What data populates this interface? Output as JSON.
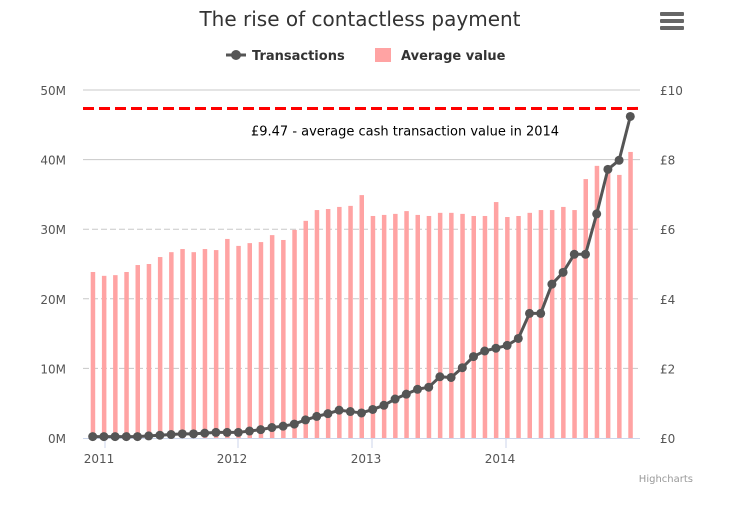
{
  "chart_data": {
    "type": "bar+line",
    "title": "The rise of contactless payment",
    "legend": {
      "position": "top-center",
      "items": [
        "Transactions",
        "Average value"
      ]
    },
    "x_start": "2011-01",
    "x_interval": "month",
    "x_tick_labels": [
      "2011",
      "2012",
      "2013",
      "2014"
    ],
    "y_left": {
      "ticks": [
        "0M",
        "10M",
        "20M",
        "30M",
        "40M",
        "50M"
      ],
      "range": [
        0,
        50000000
      ]
    },
    "y_right": {
      "ticks": [
        "£0",
        "£2",
        "£4",
        "£6",
        "£8",
        "£10"
      ],
      "range": [
        0,
        10
      ]
    },
    "series": [
      {
        "name": "Transactions",
        "type": "line",
        "axis": "left",
        "unit": "millions",
        "color": "#555555",
        "values": [
          0.2,
          0.2,
          0.2,
          0.2,
          0.2,
          0.3,
          0.4,
          0.5,
          0.6,
          0.6,
          0.7,
          0.8,
          0.8,
          0.8,
          1.0,
          1.2,
          1.5,
          1.7,
          2.0,
          2.6,
          3.1,
          3.5,
          4.0,
          3.8,
          3.6,
          4.1,
          4.7,
          5.6,
          6.3,
          7.0,
          7.3,
          8.8,
          8.7,
          10.1,
          11.7,
          12.5,
          12.9,
          13.3,
          14.3,
          17.9,
          17.9,
          22.1,
          23.8,
          26.4,
          26.4,
          32.2,
          38.6,
          39.9,
          46.2
        ]
      },
      {
        "name": "Average value",
        "type": "column",
        "axis": "right",
        "unit": "GBP",
        "color": "#ffa3a3",
        "values": [
          4.77,
          4.66,
          4.68,
          4.77,
          4.97,
          5.0,
          5.2,
          5.34,
          5.43,
          5.34,
          5.43,
          5.4,
          5.72,
          5.52,
          5.6,
          5.63,
          5.83,
          5.69,
          5.98,
          6.24,
          6.55,
          6.58,
          6.64,
          6.67,
          6.98,
          6.38,
          6.41,
          6.44,
          6.52,
          6.41,
          6.38,
          6.47,
          6.47,
          6.44,
          6.38,
          6.38,
          6.78,
          6.35,
          6.38,
          6.47,
          6.55,
          6.55,
          6.64,
          6.55,
          7.44,
          7.82,
          7.8,
          7.56,
          8.22
        ]
      }
    ],
    "plot_line": {
      "value": 9.47,
      "axis": "right",
      "color": "#ff0000",
      "label": "£9.47 - average cash transaction value in 2014"
    }
  },
  "credits": "Highcharts"
}
